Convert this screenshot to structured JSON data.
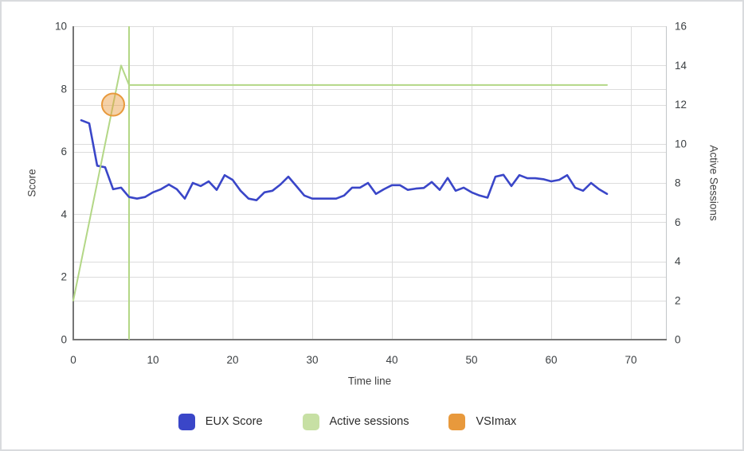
{
  "window": {
    "background": "#ffffff",
    "border_color": "#d9dbde"
  },
  "colors": {
    "eux_blue": "#3a46c8",
    "sessions_green": "#b3d786",
    "vsimax_orange": "#e8993c",
    "vsimax_fill_opacity": 0.45,
    "gridline": "#dcdcdc",
    "plot_right_border": "#c2c6c9",
    "axis_line": "#757575",
    "tick_text": "#3c4043",
    "legend_green_swatch": "#c7e0a4"
  },
  "chart_data": {
    "type": "line",
    "title": "",
    "xlabel": "Time line",
    "ylabel_left": "Score",
    "ylabel_right": "Active Sessions",
    "xlim": [
      0,
      74.4
    ],
    "ylim_left": [
      0,
      10
    ],
    "ylim_right": [
      0,
      16
    ],
    "x_ticks": [
      0,
      10,
      20,
      30,
      40,
      50,
      60,
      70
    ],
    "y_ticks_left": [
      0,
      2,
      4,
      6,
      8,
      10
    ],
    "y_ticks_right": [
      0,
      2,
      4,
      6,
      8,
      10,
      12,
      14,
      16
    ],
    "grid": true,
    "legend_position": "bottom",
    "vline": {
      "x": 7,
      "color": "#b3d786",
      "width": 2
    },
    "series": [
      {
        "name": "EUX Score",
        "type": "line",
        "axis": "left",
        "color": "#3a46c8",
        "stroke_width": 2.6,
        "x_start": 1,
        "x_step": 1,
        "values": [
          7.0,
          6.9,
          5.55,
          5.5,
          4.8,
          4.85,
          4.55,
          4.5,
          4.55,
          4.7,
          4.8,
          4.95,
          4.8,
          4.5,
          5.0,
          4.9,
          5.05,
          4.78,
          5.25,
          5.1,
          4.75,
          4.5,
          4.45,
          4.7,
          4.75,
          4.95,
          5.2,
          4.9,
          4.6,
          4.5,
          4.5,
          4.5,
          4.5,
          4.6,
          4.85,
          4.85,
          5.0,
          4.65,
          4.8,
          4.93,
          4.93,
          4.78,
          4.82,
          4.84,
          5.03,
          4.78,
          5.16,
          4.75,
          4.85,
          4.7,
          4.6,
          4.53,
          5.2,
          5.26,
          4.9,
          5.25,
          5.15,
          5.15,
          5.12,
          5.05,
          5.1,
          5.25,
          4.85,
          4.75,
          5.0,
          4.8,
          4.65
        ]
      },
      {
        "name": "Active sessions",
        "type": "line",
        "axis": "right",
        "color": "#b3d786",
        "stroke_width": 2,
        "x": [
          0,
          6,
          7,
          67
        ],
        "values": [
          2,
          14,
          13,
          13
        ]
      },
      {
        "name": "VSImax",
        "type": "point",
        "axis": "right",
        "color": "#e8993c",
        "radius": 14,
        "x": [
          5
        ],
        "values": [
          12
        ]
      }
    ]
  },
  "legend": {
    "items": [
      {
        "label": "EUX Score",
        "color": "#3a46c8"
      },
      {
        "label": "Active sessions",
        "color": "#c7e0a4"
      },
      {
        "label": "VSImax",
        "color": "#e8993c"
      }
    ]
  }
}
